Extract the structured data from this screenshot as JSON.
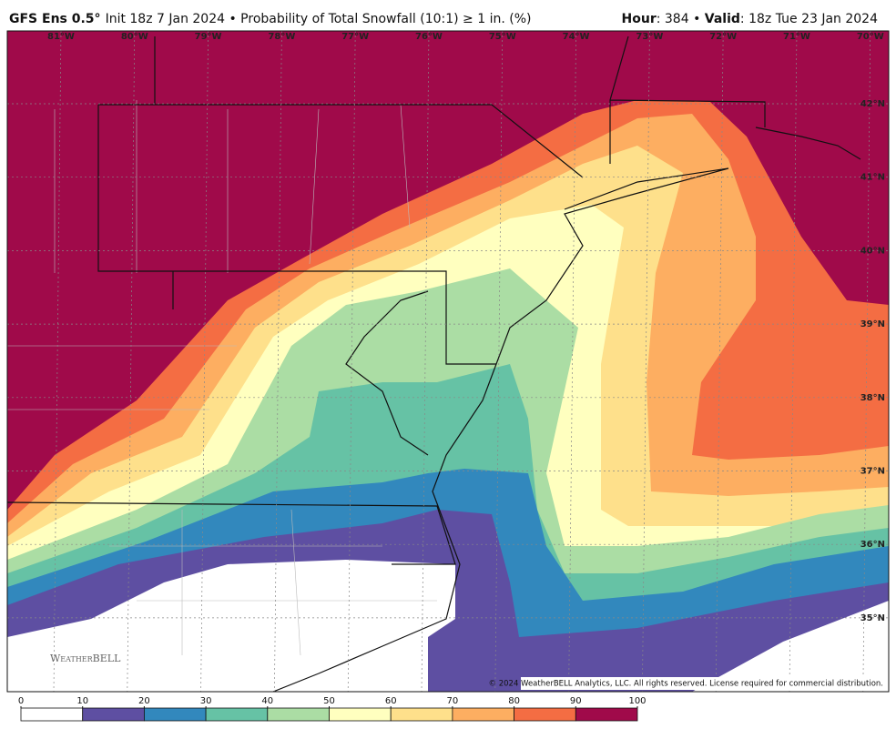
{
  "header": {
    "model": "GFS Ens 0.5°",
    "init": "Init 18z 7 Jan 2024 • Probability of Total Snowfall (10:1) ≥ 1 in. (%)",
    "hour_label": "Hour",
    "hour_value": ": 384 • ",
    "valid_label": "Valid",
    "valid_value": ": 18z Tue 23 Jan 2024"
  },
  "map": {
    "longitude_labels": [
      "81°W",
      "80°W",
      "79°W",
      "78°W",
      "77°W",
      "76°W",
      "75°W",
      "74°W",
      "73°W",
      "72°W",
      "71°W",
      "70°W"
    ],
    "latitude_labels": [
      "42°N",
      "41°N",
      "40°N",
      "39°N",
      "38°N",
      "37°N",
      "36°N",
      "35°N"
    ],
    "logo": "WeatherBELL",
    "copyright": "© 2024 WeatherBELL Analytics, LLC. All rights reserved. License required for commercial distribution."
  },
  "colorbar": {
    "ticks": [
      0,
      10,
      20,
      30,
      40,
      50,
      60,
      70,
      80,
      90,
      100
    ],
    "colors": [
      "#ffffff",
      "#5e4fa2",
      "#3288bd",
      "#66c2a5",
      "#abdda4",
      "#ffffbf",
      "#fee08b",
      "#fdae61",
      "#f46d43",
      "#a00a4a"
    ]
  }
}
